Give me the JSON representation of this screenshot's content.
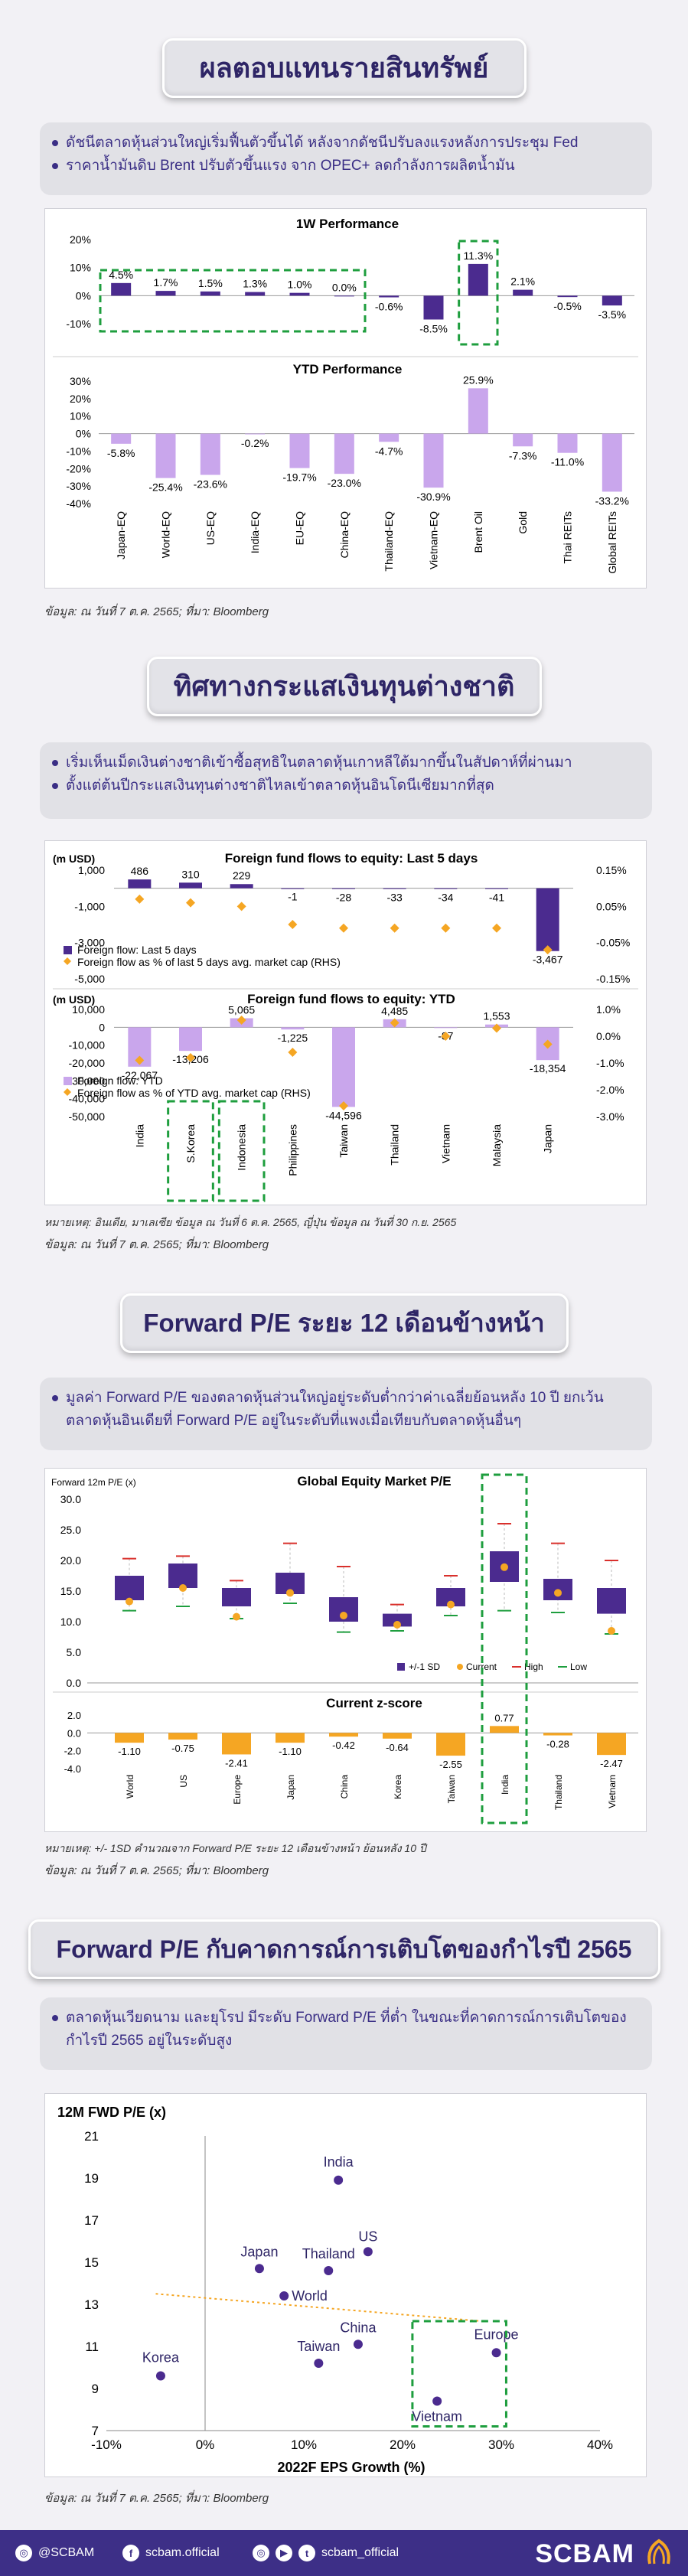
{
  "sections": {
    "asset_returns": {
      "title": "ผลตอบแทนรายสินทรัพย์",
      "bullets": [
        "ดัชนีตลาดหุ้นส่วนใหญ่เริ่มฟื้นตัวขึ้นได้ หลังจากดัชนีปรับลงแรงหลังการประชุม Fed",
        "ราคาน้ำมันดิบ Brent ปรับตัวขึ้นแรง จาก OPEC+ ลดกำลังการผลิตน้ำมัน"
      ],
      "source": "ข้อมูล: ณ วันที่ 7 ต.ค. 2565; ที่มา: Bloomberg"
    },
    "fund_flows": {
      "title": "ทิศทางกระแสเงินทุนต่างชาติ",
      "bullets": [
        "เริ่มเห็นเม็ดเงินต่างชาติเข้าซื้อสุทธิในตลาดหุ้นเกาหลีใต้มากขึ้นในสัปดาห์ที่ผ่านมา",
        "ตั้งแต่ต้นปีกระแสเงินทุนต่างชาติไหลเข้าตลาดหุ้นอินโดนีเซียมากที่สุด"
      ],
      "note": "หมายเหตุ: อินเดีย, มาเลเซีย ข้อมูล ณ วันที่ 6 ต.ค. 2565, ญี่ปุ่น ข้อมูล ณ วันที่ 30 ก.ย. 2565",
      "source": "ข้อมูล: ณ วันที่ 7 ต.ค. 2565; ที่มา: Bloomberg"
    },
    "forward_pe": {
      "title": "Forward P/E ระยะ 12 เดือนข้างหน้า",
      "bullets": [
        "มูลค่า Forward P/E ของตลาดหุ้นส่วนใหญ่อยู่ระดับต่ำกว่าค่าเฉลี่ยย้อนหลัง 10 ปี ยกเว้นตลาดหุ้นอินเดียที่ Forward P/E อยู่ในระดับที่แพงเมื่อเทียบกับตลาดหุ้นอื่นๆ"
      ],
      "note": "หมายเหตุ: +/- 1SD คำนวณจาก Forward P/E ระยะ 12 เดือนข้างหน้า ย้อนหลัง 10 ปี",
      "source": "ข้อมูล: ณ วันที่ 7 ต.ค. 2565; ที่มา: Bloomberg"
    },
    "pe_vs_growth": {
      "title": "Forward P/E กับคาดการณ์การเติบโตของกำไรปี 2565",
      "bullets": [
        "ตลาดหุ้นเวียดนาม และยุโรป มีระดับ Forward P/E ที่ต่ำ ในขณะที่คาดการณ์การเติบโตของกำไรปี 2565 อยู่ในระดับสูง"
      ],
      "source": "ข้อมูล: ณ วันที่ 7 ต.ค. 2565; ที่มา: Bloomberg"
    }
  },
  "colors": {
    "purple": "#4b2b8f",
    "lavender": "#c9a6ec",
    "orange": "#f5a623",
    "green": "#1e9e3e",
    "red": "#d9302c"
  },
  "chart_data": [
    {
      "type": "bar",
      "title": "1W Performance",
      "categories": [
        "Japan-EQ",
        "World-EQ",
        "US-EQ",
        "India-EQ",
        "EU-EQ",
        "China-EQ",
        "Thailand-EQ",
        "Vietnam-EQ",
        "Brent Oil",
        "Gold",
        "Thai REITs",
        "Global REITs"
      ],
      "values": [
        4.5,
        1.7,
        1.5,
        1.3,
        1.0,
        0.0,
        -0.6,
        -8.5,
        11.3,
        2.1,
        -0.5,
        -3.5
      ],
      "value_labels": [
        "4.5%",
        "1.7%",
        "1.5%",
        "1.3%",
        "1.0%",
        "0.0%",
        "-0.6%",
        "-8.5%",
        "11.3%",
        "2.1%",
        "-0.5%",
        "-3.5%"
      ],
      "ylim": [
        -10,
        20
      ],
      "yticks": [
        "20%",
        "10%",
        "0%",
        "-10%"
      ]
    },
    {
      "type": "bar",
      "title": "YTD Performance",
      "categories": [
        "Japan-EQ",
        "World-EQ",
        "US-EQ",
        "India-EQ",
        "EU-EQ",
        "China-EQ",
        "Thailand-EQ",
        "Vietnam-EQ",
        "Brent Oil",
        "Gold",
        "Thai REITs",
        "Global REITs"
      ],
      "values": [
        -5.8,
        -25.4,
        -23.6,
        -0.2,
        -19.7,
        -23.0,
        -4.7,
        -30.9,
        25.9,
        -7.3,
        -11.0,
        -33.2
      ],
      "value_labels": [
        "-5.8%",
        "-25.4%",
        "-23.6%",
        "-0.2%",
        "-19.7%",
        "-23.0%",
        "-4.7%",
        "-30.9%",
        "25.9%",
        "-7.3%",
        "-11.0%",
        "-33.2%"
      ],
      "ylim": [
        -40,
        30
      ],
      "yticks": [
        "30%",
        "20%",
        "10%",
        "0%",
        "-10%",
        "-20%",
        "-30%",
        "-40%"
      ]
    },
    {
      "type": "bar",
      "title": "Foreign fund flows to equity: Last 5 days",
      "ylabel": "(m USD)",
      "categories": [
        "India",
        "S.Korea",
        "Indonesia",
        "Philippines",
        "Taiwan",
        "Thailand",
        "Vietnam",
        "Malaysia",
        "Japan"
      ],
      "values": [
        486,
        310,
        229,
        -1,
        -28,
        -33,
        -34,
        -41,
        -3467
      ],
      "value_labels": [
        "486",
        "310",
        "229",
        "-1",
        "-28",
        "-33",
        "-34",
        "-41",
        "-3,467"
      ],
      "pct_market_cap": [
        0.07,
        0.06,
        0.05,
        0.0,
        -0.01,
        -0.01,
        -0.01,
        -0.01,
        -0.07
      ],
      "ylim": [
        -5000,
        1000
      ],
      "yticks": [
        "1,000",
        "-1,000",
        "-3,000",
        "-5,000"
      ],
      "rhs_ticks": [
        "0.15%",
        "0.05%",
        "-0.05%",
        "-0.15%"
      ],
      "legend": [
        "Foreign flow: Last 5 days",
        "Foreign flow as % of last 5 days avg. market cap (RHS)"
      ]
    },
    {
      "type": "bar",
      "title": "Foreign fund flows to equity: YTD",
      "ylabel": "(m USD)",
      "categories": [
        "India",
        "S.Korea",
        "Indonesia",
        "Philippines",
        "Taiwan",
        "Thailand",
        "Vietnam",
        "Malaysia",
        "Japan"
      ],
      "values": [
        -22067,
        -13206,
        5065,
        -1225,
        -44596,
        4485,
        -87,
        1553,
        -18354
      ],
      "value_labels": [
        "-22,067",
        "-13,206",
        "5,065",
        "-1,225",
        "-44,596",
        "4,485",
        "-87",
        "1,553",
        "-18,354"
      ],
      "pct_market_cap": [
        -0.9,
        -0.8,
        0.6,
        -0.6,
        -2.6,
        0.5,
        0.0,
        0.3,
        -0.3
      ],
      "ylim": [
        -50000,
        10000
      ],
      "yticks": [
        "10,000",
        "0",
        "-10,000",
        "-20,000",
        "-30,000",
        "-40,000",
        "-50,000"
      ],
      "rhs_ticks": [
        "1.0%",
        "0.0%",
        "-1.0%",
        "-2.0%",
        "-3.0%"
      ],
      "legend": [
        "Foreign flow: YTD",
        "Foreign flow as % of YTD avg. market cap (RHS)"
      ]
    },
    {
      "type": "bar",
      "title": "Global Equity Market P/E",
      "ylabel": "Forward 12m P/E (x)",
      "categories": [
        "World",
        "US",
        "Europe",
        "Japan",
        "China",
        "Korea",
        "Taiwan",
        "India",
        "Thailand",
        "Vietnam"
      ],
      "sd_low": [
        13.5,
        15.5,
        12.5,
        14.5,
        10.0,
        9.2,
        12.5,
        16.5,
        13.5,
        11.3
      ],
      "sd_high": [
        17.5,
        19.5,
        15.5,
        18.0,
        14.0,
        11.3,
        15.5,
        21.5,
        17.0,
        15.5
      ],
      "current": [
        13.3,
        15.5,
        10.8,
        14.7,
        11.0,
        9.5,
        12.8,
        18.9,
        14.7,
        8.5
      ],
      "high": [
        20.3,
        20.7,
        16.7,
        22.8,
        19.0,
        12.8,
        17.5,
        26.0,
        22.8,
        20.0
      ],
      "low": [
        11.8,
        12.5,
        10.5,
        13.0,
        8.3,
        8.5,
        11.0,
        11.8,
        11.5,
        8.0
      ],
      "ylim": [
        0,
        30
      ],
      "yticks": [
        "30.0",
        "25.0",
        "20.0",
        "15.0",
        "10.0",
        "5.0",
        "0.0"
      ],
      "legend": [
        "+/-1 SD",
        "Current",
        "High",
        "Low"
      ]
    },
    {
      "type": "bar",
      "title": "Current z-score",
      "categories": [
        "World",
        "US",
        "Europe",
        "Japan",
        "China",
        "Korea",
        "Taiwan",
        "India",
        "Thailand",
        "Vietnam"
      ],
      "values": [
        -1.1,
        -0.75,
        -2.41,
        -1.1,
        -0.42,
        -0.64,
        -2.55,
        0.77,
        -0.28,
        -2.47
      ],
      "value_labels": [
        "-1.10",
        "-0.75",
        "-2.41",
        "-1.10",
        "-0.42",
        "-0.64",
        "-2.55",
        "0.77",
        "-0.28",
        "-2.47"
      ],
      "ylim": [
        -4,
        2
      ],
      "yticks": [
        "2.0",
        "0.0",
        "-2.0",
        "-4.0"
      ]
    },
    {
      "type": "scatter",
      "ylabel": "12M FWD P/E (x)",
      "xlabel": "2022F EPS Growth (%)",
      "xlim": [
        -10,
        40
      ],
      "ylim": [
        7,
        21
      ],
      "xticks": [
        "-10%",
        "0%",
        "10%",
        "20%",
        "30%",
        "40%"
      ],
      "yticks": [
        "21",
        "19",
        "17",
        "15",
        "13",
        "11",
        "9",
        "7"
      ],
      "points": [
        {
          "label": "India",
          "x": 13.5,
          "y": 18.9
        },
        {
          "label": "US",
          "x": 16.5,
          "y": 15.5
        },
        {
          "label": "Japan",
          "x": 5.5,
          "y": 14.7
        },
        {
          "label": "Thailand",
          "x": 12.5,
          "y": 14.6
        },
        {
          "label": "World",
          "x": 8.0,
          "y": 13.4
        },
        {
          "label": "China",
          "x": 15.5,
          "y": 11.1
        },
        {
          "label": "Taiwan",
          "x": 11.5,
          "y": 10.2
        },
        {
          "label": "Europe",
          "x": 29.5,
          "y": 10.7
        },
        {
          "label": "Korea",
          "x": -4.5,
          "y": 9.6
        },
        {
          "label": "Vietnam",
          "x": 23.5,
          "y": 8.4
        }
      ]
    }
  ],
  "footer": {
    "instagram_handle": "@SCBAM",
    "facebook_handle": "scbam.official",
    "social_handle": "scbam_official",
    "brand": "SCBAM",
    "ig_glyph": "◎",
    "fb_glyph": "f",
    "yt_glyph": "▶",
    "tw_glyph": "t"
  }
}
